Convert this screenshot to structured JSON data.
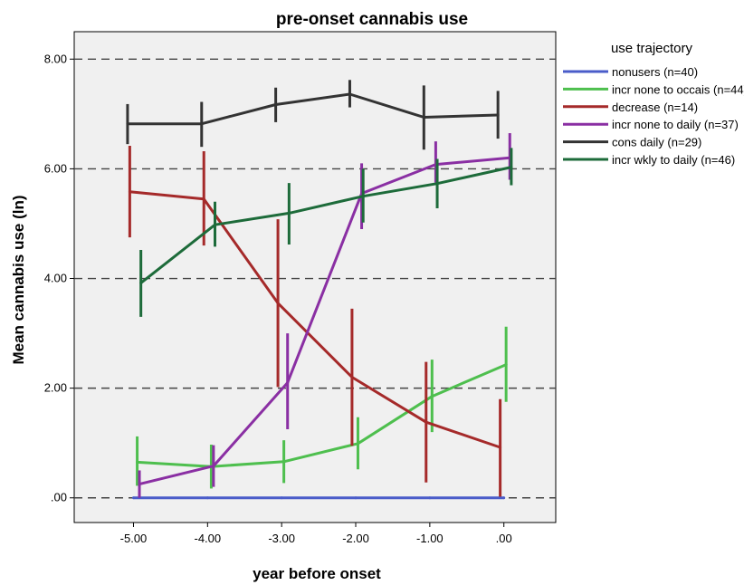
{
  "chart_data": {
    "type": "line",
    "title": "pre-onset cannabis use",
    "xlabel": "year before onset",
    "ylabel": "Mean cannabis use (ln)",
    "x": [
      -5,
      -4,
      -3,
      -2,
      -1,
      0
    ],
    "x_tick_labels": [
      "-5.00",
      "-4.00",
      "-3.00",
      "-2.00",
      "-1.00",
      ".00"
    ],
    "xlim": [
      -5.8,
      0.7
    ],
    "y_ticks": [
      0,
      2,
      4,
      6,
      8
    ],
    "y_tick_labels": [
      ".00",
      "2.00",
      "4.00",
      "6.00",
      "8.00"
    ],
    "ylim": [
      -0.45,
      8.5
    ],
    "grid": "horizontal dashed",
    "legend_title": "use trajectory",
    "legend_position": "right",
    "plot_background": "#f0f0f0",
    "series": [
      {
        "name": "nonusers (n=40)",
        "color": "#4a5cc9",
        "points": [
          {
            "x": -5,
            "y": 0.0
          },
          {
            "x": -4,
            "y": 0.0
          },
          {
            "x": -3,
            "y": 0.0
          },
          {
            "x": -2,
            "y": 0.0
          },
          {
            "x": -1,
            "y": 0.0
          },
          {
            "x": 0,
            "y": 0.0
          }
        ]
      },
      {
        "name": "incr none to occais (n=44)",
        "color": "#4ebf4e",
        "points": [
          {
            "x": -4.95,
            "y": 0.65,
            "lo": 0.22,
            "hi": 1.12
          },
          {
            "x": -3.95,
            "y": 0.57,
            "lo": 0.17,
            "hi": 0.97
          },
          {
            "x": -2.97,
            "y": 0.66,
            "lo": 0.27,
            "hi": 1.05
          },
          {
            "x": -1.97,
            "y": 0.99,
            "lo": 0.52,
            "hi": 1.47
          },
          {
            "x": -0.97,
            "y": 1.85,
            "lo": 1.2,
            "hi": 2.52
          },
          {
            "x": 0.03,
            "y": 2.43,
            "lo": 1.75,
            "hi": 3.12
          }
        ]
      },
      {
        "name": "decrease (n=14)",
        "color": "#a52a2a",
        "points": [
          {
            "x": -5.05,
            "y": 5.58,
            "lo": 4.75,
            "hi": 6.42
          },
          {
            "x": -4.05,
            "y": 5.45,
            "lo": 4.6,
            "hi": 6.32
          },
          {
            "x": -3.05,
            "y": 3.55,
            "lo": 2.02,
            "hi": 5.08
          },
          {
            "x": -2.05,
            "y": 2.2,
            "lo": 0.95,
            "hi": 3.45
          },
          {
            "x": -1.05,
            "y": 1.38,
            "lo": 0.28,
            "hi": 2.48
          },
          {
            "x": -0.05,
            "y": 0.92,
            "lo": 0.02,
            "hi": 1.8
          }
        ]
      },
      {
        "name": "incr none to daily (n=37)",
        "color": "#8a2fa3",
        "points": [
          {
            "x": -4.92,
            "y": 0.25,
            "lo": 0.0,
            "hi": 0.5
          },
          {
            "x": -3.92,
            "y": 0.58,
            "lo": 0.2,
            "hi": 0.96
          },
          {
            "x": -2.92,
            "y": 2.1,
            "lo": 1.25,
            "hi": 3.0
          },
          {
            "x": -1.92,
            "y": 5.55,
            "lo": 4.9,
            "hi": 6.1
          },
          {
            "x": -0.92,
            "y": 6.08,
            "lo": 5.75,
            "hi": 6.5
          },
          {
            "x": 0.08,
            "y": 6.2,
            "lo": 5.8,
            "hi": 6.65
          }
        ]
      },
      {
        "name": "cons daily (n=29)",
        "color": "#333333",
        "points": [
          {
            "x": -5.08,
            "y": 6.82,
            "lo": 6.45,
            "hi": 7.18
          },
          {
            "x": -4.08,
            "y": 6.82,
            "lo": 6.4,
            "hi": 7.22
          },
          {
            "x": -3.08,
            "y": 7.17,
            "lo": 6.85,
            "hi": 7.48
          },
          {
            "x": -2.08,
            "y": 7.36,
            "lo": 7.12,
            "hi": 7.62
          },
          {
            "x": -1.08,
            "y": 6.94,
            "lo": 6.35,
            "hi": 7.52
          },
          {
            "x": -0.08,
            "y": 6.98,
            "lo": 6.55,
            "hi": 7.42
          }
        ]
      },
      {
        "name": "incr wkly to daily (n=46)",
        "color": "#1d6b3a",
        "points": [
          {
            "x": -4.9,
            "y": 3.92,
            "lo": 3.3,
            "hi": 4.52
          },
          {
            "x": -3.9,
            "y": 4.98,
            "lo": 4.58,
            "hi": 5.4
          },
          {
            "x": -2.9,
            "y": 5.19,
            "lo": 4.62,
            "hi": 5.74
          },
          {
            "x": -1.9,
            "y": 5.5,
            "lo": 5.02,
            "hi": 6.0
          },
          {
            "x": -0.9,
            "y": 5.73,
            "lo": 5.28,
            "hi": 6.18
          },
          {
            "x": 0.1,
            "y": 6.03,
            "lo": 5.7,
            "hi": 6.38
          }
        ]
      }
    ]
  }
}
